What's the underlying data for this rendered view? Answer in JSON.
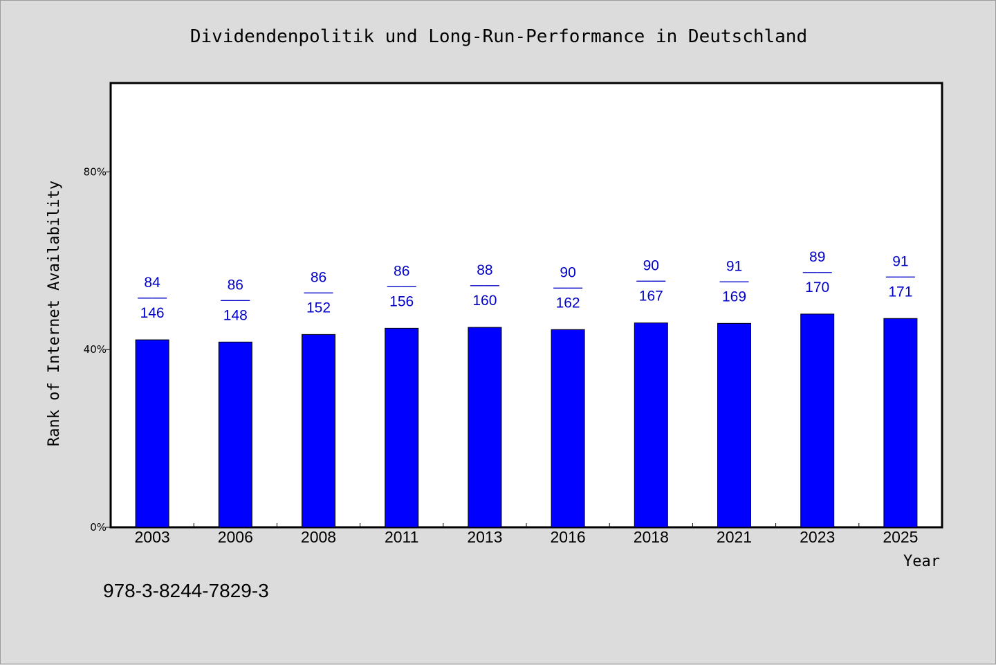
{
  "chart_data": {
    "type": "bar",
    "title": "Dividendenpolitik und Long-Run-Performance in Deutschland",
    "xlabel": "Year",
    "ylabel": "Rank of Internet Availability",
    "categories": [
      "2003",
      "2006",
      "2008",
      "2011",
      "2013",
      "2016",
      "2018",
      "2021",
      "2023",
      "2025"
    ],
    "values": [
      42.2,
      41.7,
      43.4,
      44.8,
      45.0,
      44.5,
      46.0,
      45.9,
      48.0,
      47.0
    ],
    "labels": [
      {
        "top": "84",
        "sep": "——",
        "bottom": "146"
      },
      {
        "top": "86",
        "sep": "——",
        "bottom": "148"
      },
      {
        "top": "86",
        "sep": "——",
        "bottom": "152"
      },
      {
        "top": "86",
        "sep": "——",
        "bottom": "156"
      },
      {
        "top": "88",
        "sep": "——",
        "bottom": "160"
      },
      {
        "top": "90",
        "sep": "——",
        "bottom": "162"
      },
      {
        "top": "90",
        "sep": "——",
        "bottom": "167"
      },
      {
        "top": "91",
        "sep": "——",
        "bottom": "169"
      },
      {
        "top": "89",
        "sep": "——",
        "bottom": "170"
      },
      {
        "top": "91",
        "sep": "——",
        "bottom": "171"
      }
    ],
    "ylim": [
      0,
      100
    ],
    "yticks": [
      {
        "value": 0,
        "label": "0%"
      },
      {
        "value": 40,
        "label": "40%"
      },
      {
        "value": 80,
        "label": "80%"
      }
    ],
    "grid": false,
    "bar_color": "#0000ff",
    "label_color": "#0000c8",
    "background": "#dcdcdc",
    "plot_background": "#ffffff"
  },
  "footer": {
    "isbn": "978-3-8244-7829-3"
  }
}
